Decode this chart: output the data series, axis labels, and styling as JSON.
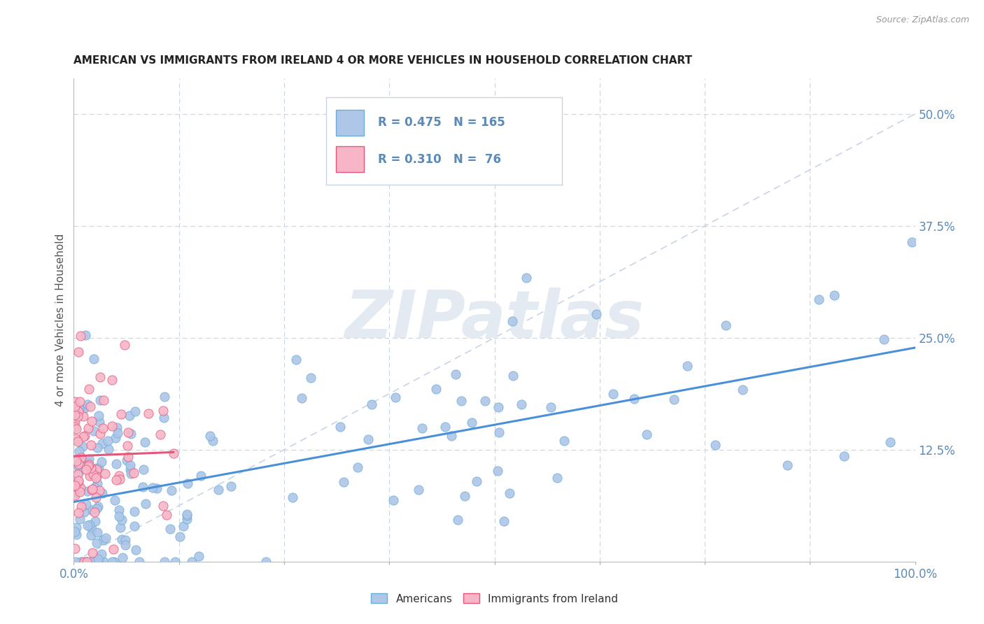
{
  "title": "AMERICAN VS IMMIGRANTS FROM IRELAND 4 OR MORE VEHICLES IN HOUSEHOLD CORRELATION CHART",
  "source": "Source: ZipAtlas.com",
  "ylabel": "4 or more Vehicles in Household",
  "legend_americans": "Americans",
  "legend_ireland": "Immigrants from Ireland",
  "R_americans": 0.475,
  "N_americans": 165,
  "R_ireland": 0.31,
  "N_ireland": 76,
  "color_americans_fill": "#aec6e8",
  "color_americans_edge": "#6aaed6",
  "color_ireland_fill": "#f7b6c8",
  "color_ireland_edge": "#e8547a",
  "color_line_americans": "#4a90d9",
  "color_line_ireland": "#e8547a",
  "color_ref_line": "#c8d4e8",
  "watermark": "ZIPatlas",
  "watermark_color": "#e4eaf2",
  "xlim": [
    0.0,
    1.0
  ],
  "ylim": [
    0.0,
    0.54
  ],
  "background_color": "#ffffff",
  "grid_color": "#c8d4e8",
  "title_color": "#222222",
  "axis_tick_color": "#5a8ab8",
  "ylabel_color": "#555555"
}
